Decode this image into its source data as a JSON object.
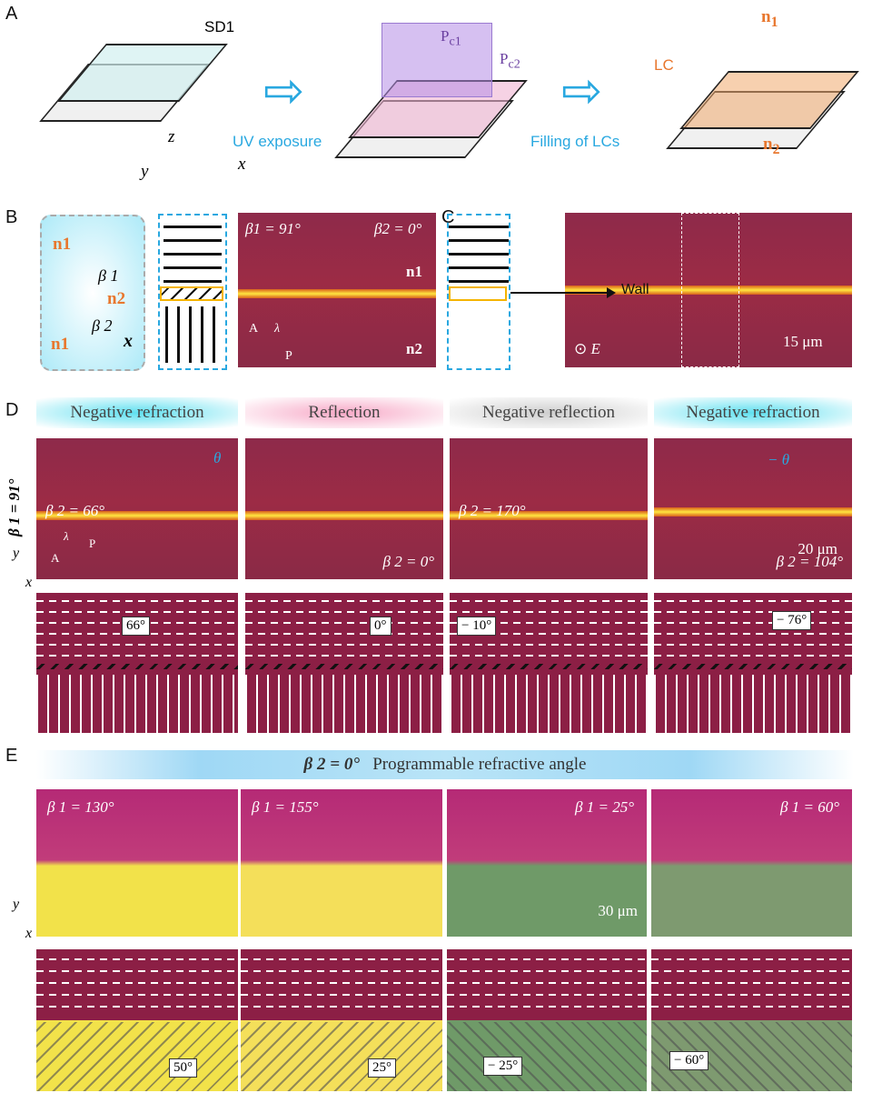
{
  "panelA": {
    "label": "A",
    "sd1": "SD1",
    "axes": {
      "z": "z",
      "y": "y",
      "x": "x"
    },
    "uv": "UV exposure",
    "pc1": "P",
    "pc1_sub": "c1",
    "pc2": "P",
    "pc2_sub": "c2",
    "filling": "Filling of LCs",
    "lc": "LC",
    "n1": "n",
    "n1_sub": "1",
    "n2": "n",
    "n2_sub": "2",
    "colors": {
      "arrow": "#29a8e0",
      "lc": "#e8772e",
      "mask": "#b48ce6"
    }
  },
  "panelB": {
    "label": "B",
    "n1a": "n1",
    "n2": "n2",
    "n1b": "n1",
    "beta1": "β 1",
    "beta2": "β 2",
    "x": "x",
    "img_beta1": "β1 = 91°",
    "img_beta2": "β2 = 0°",
    "img_n1": "n1",
    "img_n2": "n2",
    "A": "A",
    "P": "P",
    "lambda": "λ"
  },
  "panelC": {
    "label": "C",
    "wall": "Wall",
    "E": "E",
    "scale": "15 μm"
  },
  "panelD": {
    "label": "D",
    "side": "β 1 = 91°",
    "axis_y": "y",
    "axis_x": "x",
    "columns": [
      {
        "header": "Negative refraction",
        "header_color": "#5fe0f0",
        "beta": "β 2 = 66°",
        "theta": "θ",
        "angle": "66°",
        "extra": [
          "λ",
          "A",
          "P"
        ]
      },
      {
        "header": "Reflection",
        "header_color": "#f7a9c7",
        "beta": "β 2 = 0°",
        "angle": "0°"
      },
      {
        "header": "Negative reflection",
        "header_color": "#cfcfcf",
        "beta": "β 2 = 170°",
        "angle": "− 10°"
      },
      {
        "header": "Negative refraction",
        "header_color": "#5fe0f0",
        "beta": "β 2 = 104°",
        "theta": "− θ",
        "angle": "− 76°",
        "scale": "20 μm"
      }
    ]
  },
  "panelE": {
    "label": "E",
    "banner_beta": "β 2 = 0°",
    "banner_text": "Programmable refractive angle",
    "axis_y": "y",
    "axis_x": "x",
    "columns": [
      {
        "beta": "β 1 = 130°",
        "angle": "50°",
        "bottom_color": "#f2e24a"
      },
      {
        "beta": "β 1 = 155°",
        "angle": "25°",
        "bottom_color": "#f4df5a"
      },
      {
        "beta": "β 1 = 25°",
        "angle": "− 25°",
        "bottom_color": "#6f9a68",
        "scale": "30 μm"
      },
      {
        "beta": "β 1 = 60°",
        "angle": "− 60°",
        "bottom_color": "#7e9a70"
      }
    ]
  }
}
